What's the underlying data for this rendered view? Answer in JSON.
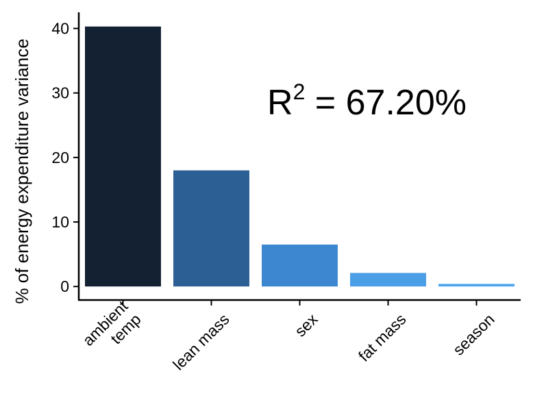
{
  "chart_data": {
    "type": "bar",
    "title": "",
    "xlabel": "",
    "ylabel": "% of energy expenditure variance",
    "categories": [
      [
        "ambient",
        "temp"
      ],
      [
        "lean mass"
      ],
      [
        "sex"
      ],
      [
        "fat mass"
      ],
      [
        "season"
      ]
    ],
    "values": [
      40.3,
      18.0,
      6.5,
      2.1,
      0.4
    ],
    "colors": [
      "#132133",
      "#2c5f93",
      "#3c87d0",
      "#4a9ee6",
      "#4ea5ef"
    ],
    "yticks": [
      0,
      10,
      20,
      30,
      40
    ],
    "ylim": [
      -2.1,
      42.5
    ],
    "grid": false,
    "annotation": {
      "base": "R",
      "superscript": "2",
      "rest": " = 67.20%"
    }
  }
}
